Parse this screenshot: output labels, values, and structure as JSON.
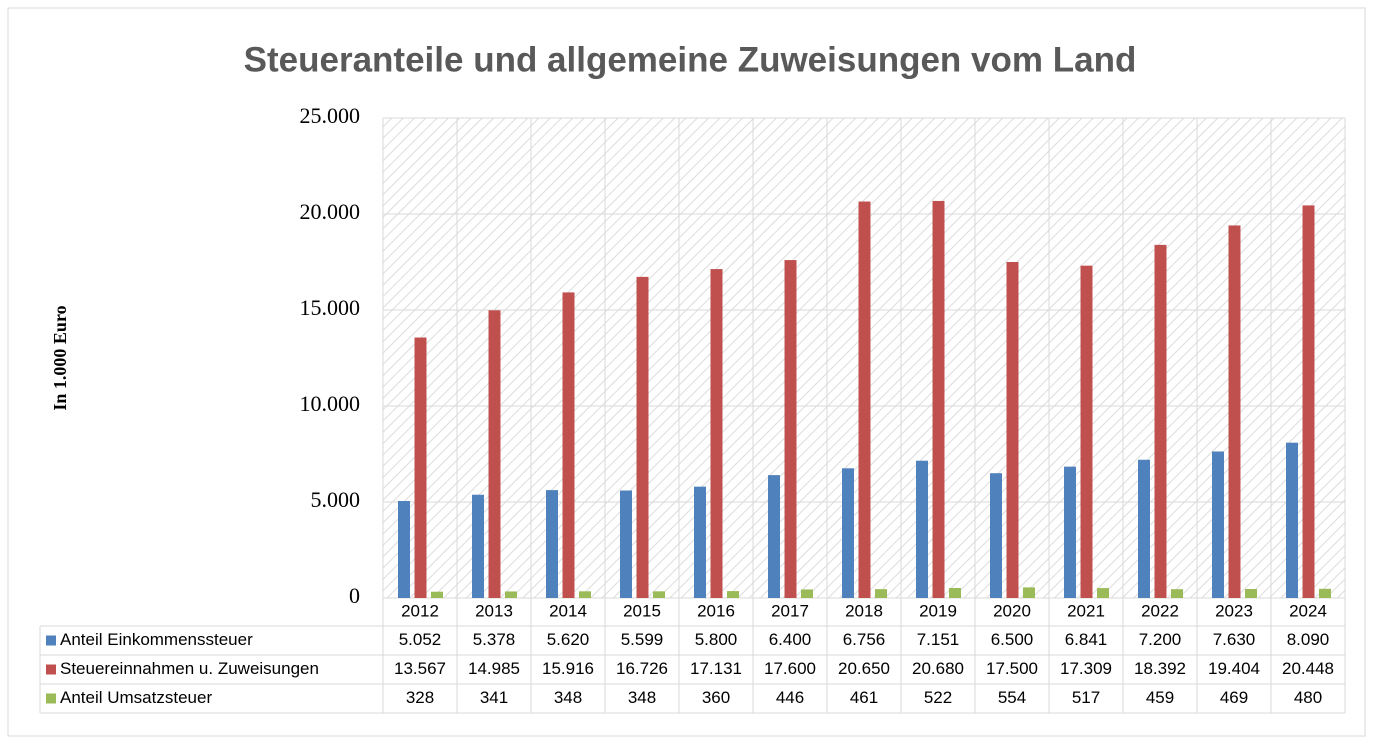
{
  "chart_data": {
    "type": "bar",
    "title": "Steueranteile und allgemeine Zuweisungen vom Land",
    "y_label": "In 1.000 Euro",
    "categories": [
      "2012",
      "2013",
      "2014",
      "2015",
      "2016",
      "2017",
      "2018",
      "2019",
      "2020",
      "2021",
      "2022",
      "2023",
      "2024"
    ],
    "series": [
      {
        "name": "Anteil Einkommenssteuer",
        "color": "#4f81bd",
        "values": [
          5052,
          5378,
          5620,
          5599,
          5800,
          6400,
          6756,
          7151,
          6500,
          6841,
          7200,
          7630,
          8090
        ],
        "value_labels": [
          "5.052",
          "5.378",
          "5.620",
          "5.599",
          "5.800",
          "6.400",
          "6.756",
          "7.151",
          "6.500",
          "6.841",
          "7.200",
          "7.630",
          "8.090"
        ]
      },
      {
        "name": "Steuereinnahmen u. Zuweisungen",
        "color": "#c0504d",
        "values": [
          13567,
          14985,
          15916,
          16726,
          17131,
          17600,
          20650,
          20680,
          17500,
          17309,
          18392,
          19404,
          20448
        ],
        "value_labels": [
          "13.567",
          "14.985",
          "15.916",
          "16.726",
          "17.131",
          "17.600",
          "20.650",
          "20.680",
          "17.500",
          "17.309",
          "18.392",
          "19.404",
          "20.448"
        ]
      },
      {
        "name": "Anteil Umsatzsteuer",
        "color": "#9bbb59",
        "values": [
          328,
          341,
          348,
          348,
          360,
          446,
          461,
          522,
          554,
          517,
          459,
          469,
          480
        ],
        "value_labels": [
          "328",
          "341",
          "348",
          "348",
          "360",
          "446",
          "461",
          "522",
          "554",
          "517",
          "459",
          "469",
          "480"
        ]
      }
    ],
    "ylim": [
      0,
      25000
    ],
    "yticks": [
      0,
      {
        "value": 5000,
        "label": "5.000"
      },
      {
        "value": 10000,
        "label": "10.000"
      },
      {
        "value": 15000,
        "label": "15.000"
      },
      {
        "value": 20000,
        "label": "20.000"
      },
      {
        "value": 25000,
        "label": "25.000"
      }
    ],
    "grid": true
  }
}
